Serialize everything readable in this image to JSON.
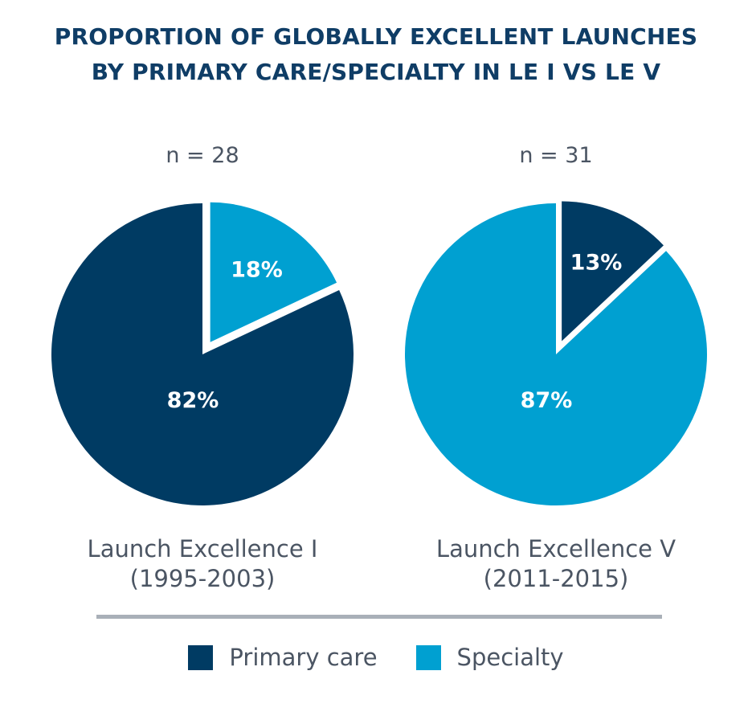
{
  "title_lines": [
    "PROPORTION OF GLOBALLY EXCELLENT LAUNCHES",
    "BY PRIMARY CARE/SPECIALTY IN LE I VS LE V"
  ],
  "colors": {
    "primary_care": "#003B63",
    "specialty": "#00A0D1",
    "title": "#0F3D66",
    "label_text": "#4B5563",
    "divider": "#A9B0B8"
  },
  "chart_data": {
    "type": "pie",
    "title": "PROPORTION OF GLOBALLY EXCELLENT LAUNCHES BY PRIMARY CARE/SPECIALTY IN LE I VS LE V",
    "legend": [
      "Primary care",
      "Specialty"
    ],
    "legend_position": "bottom",
    "pies": [
      {
        "label_line1": "Launch Excellence I",
        "label_line2": "(1995-2003)",
        "n_label": "n = 28",
        "slices": [
          {
            "name": "Specialty",
            "value": 18,
            "label": "18%",
            "exploded": true
          },
          {
            "name": "Primary care",
            "value": 82,
            "label": "82%",
            "exploded": false
          }
        ]
      },
      {
        "label_line1": "Launch Excellence V",
        "label_line2": "(2011-2015)",
        "n_label": "n = 31",
        "slices": [
          {
            "name": "Primary care",
            "value": 13,
            "label": "13%",
            "exploded": true
          },
          {
            "name": "Specialty",
            "value": 87,
            "label": "87%",
            "exploded": false
          }
        ]
      }
    ]
  }
}
